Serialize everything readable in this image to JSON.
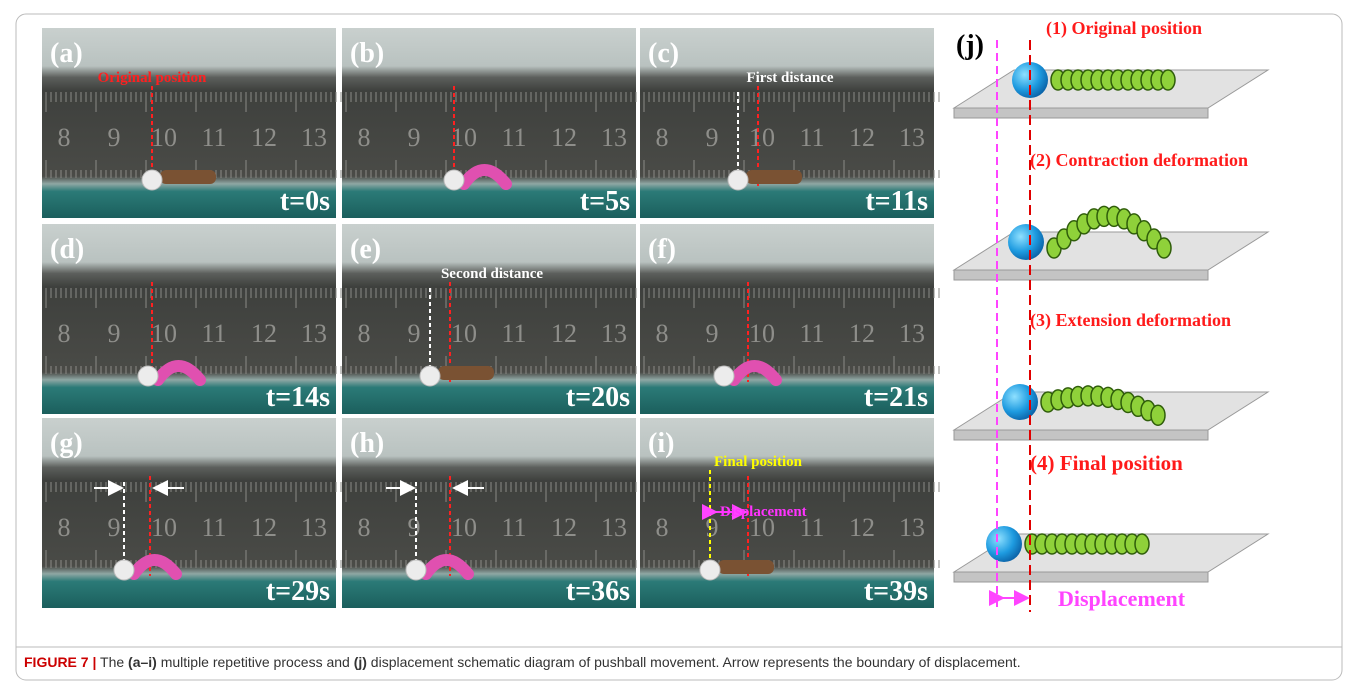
{
  "panels": [
    {
      "label": "(a)",
      "time": "t=0s",
      "notes": [
        "Original position"
      ]
    },
    {
      "label": "(b)",
      "time": "t=5s",
      "notes": []
    },
    {
      "label": "(c)",
      "time": "t=11s",
      "notes": [
        "First distance"
      ]
    },
    {
      "label": "(d)",
      "time": "t=14s",
      "notes": []
    },
    {
      "label": "(e)",
      "time": "t=20s",
      "notes": [
        "Second distance"
      ]
    },
    {
      "label": "(f)",
      "time": "t=21s",
      "notes": []
    },
    {
      "label": "(g)",
      "time": "t=29s",
      "notes": []
    },
    {
      "label": "(h)",
      "time": "t=36s",
      "notes": []
    },
    {
      "label": "(i)",
      "time": "t=39s",
      "notes": [
        "Final position",
        "Displacement"
      ]
    }
  ],
  "ruler_labels": [
    "8",
    "9",
    "10",
    "11",
    "12",
    "13"
  ],
  "schematic": {
    "label": "(j)",
    "steps": [
      "(1) Original position",
      "(2) Contraction deformation",
      "(3) Extension deformation",
      "(4) Final position"
    ],
    "displacement_label": "Displacement"
  },
  "caption": {
    "figure": "FIGURE 7 |",
    "parts": [
      " The ",
      "(a–i)",
      " multiple repetitive process and ",
      "(j)",
      " displacement schematic diagram of pushball movement. Arrow represents the boundary of displacement."
    ]
  }
}
